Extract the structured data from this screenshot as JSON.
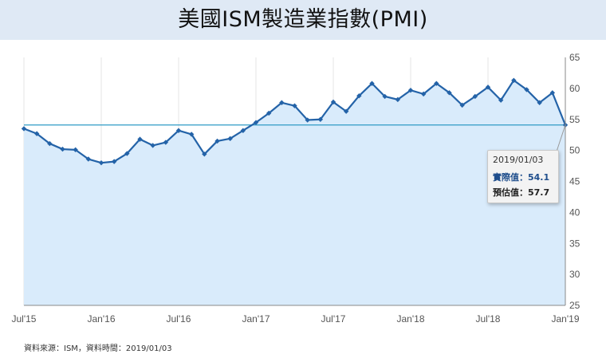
{
  "title": "美國ISM製造業指數(PMI)",
  "source_note": "資料來源：ISM，資料時間：2019/01/03",
  "tooltip": {
    "date": "2019/01/03",
    "actual_label": "實際值：",
    "actual_value": "54.1",
    "forecast_label": "預估值：",
    "forecast_value": "57.7"
  },
  "colors": {
    "line": "#2463a8",
    "fill": "#d9ebfb",
    "reference": "#2f9bc6",
    "title_bg": "#dfe9f5"
  },
  "chart_data": {
    "type": "area",
    "x_tick_labels": [
      "Jul'15",
      "Jan'16",
      "Jul'16",
      "Jan'17",
      "Jul'17",
      "Jan'18",
      "Jul'18",
      "Jan'19"
    ],
    "y_ticks": [
      25,
      30,
      35,
      40,
      45,
      50,
      55,
      60,
      65
    ],
    "ylim": [
      25,
      65
    ],
    "y_axis_position": "right",
    "reference_line": 54.1,
    "grid": "vertical",
    "series": [
      {
        "values": [
          53.5,
          52.7,
          51.1,
          50.2,
          50.1,
          48.6,
          48.0,
          48.2,
          49.5,
          51.8,
          50.8,
          51.3,
          53.2,
          52.6,
          49.4,
          51.5,
          51.9,
          53.2,
          54.5,
          56.0,
          57.7,
          57.2,
          54.9,
          55.0,
          57.8,
          56.3,
          58.8,
          60.8,
          58.7,
          58.2,
          59.7,
          59.1,
          60.8,
          59.3,
          57.3,
          58.7,
          60.2,
          58.1,
          61.3,
          59.8,
          57.7,
          59.3,
          54.1
        ]
      }
    ]
  }
}
